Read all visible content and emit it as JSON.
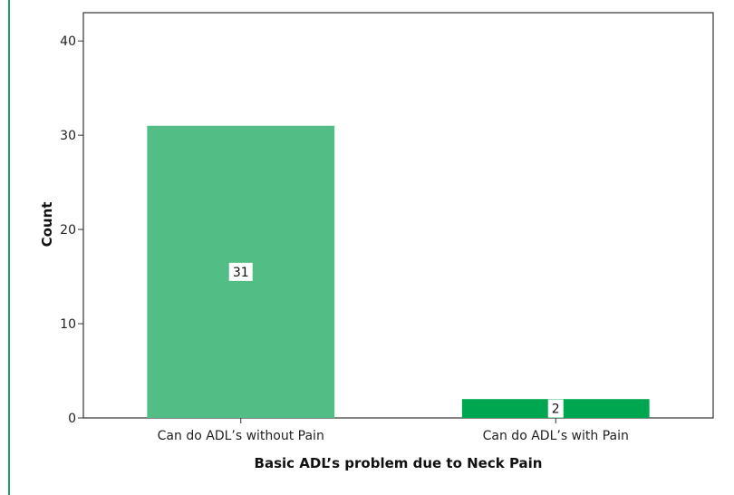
{
  "chart_data": {
    "type": "bar",
    "categories": [
      "Can do ADL’s without Pain",
      "Can do ADL’s with Pain"
    ],
    "values": [
      31,
      2
    ],
    "data_labels": [
      "31",
      "2"
    ],
    "xlabel": "Basic ADL’s problem due to Neck Pain",
    "ylabel": "Count",
    "ylim": [
      0,
      43
    ],
    "yticks": [
      0,
      10,
      20,
      30,
      40
    ],
    "ytick_labels": [
      "0",
      "10",
      "20",
      "30",
      "40"
    ],
    "grid": false,
    "legend": "none",
    "bar_colors": [
      "#52be85",
      "#00a650"
    ],
    "frame_color": "#333333",
    "accent_rule_color": "#1f9e6a"
  }
}
